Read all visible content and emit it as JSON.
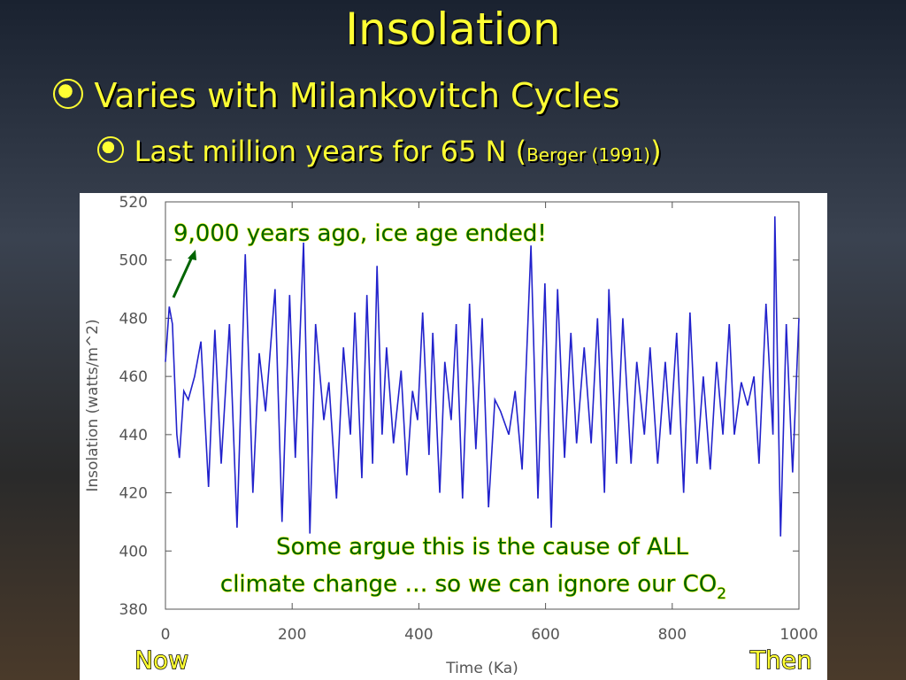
{
  "title": "Insolation",
  "bullets": [
    {
      "text": "Varies with Milankovitch Cycles"
    },
    {
      "text": "Last million years for 65 N (",
      "citation": "Berger (1991)",
      "close": ")"
    }
  ],
  "chart_data": {
    "type": "line",
    "ylabel": "Insolation (watts/m^2)",
    "xlabel": "Time (Ka)",
    "xlim": [
      0,
      1000
    ],
    "xticks": [
      0,
      200,
      400,
      600,
      800,
      1000
    ],
    "ylim": [
      380,
      520
    ],
    "yticks": [
      380,
      400,
      420,
      440,
      460,
      480,
      500,
      520
    ],
    "x": [
      0,
      6,
      11,
      18,
      22,
      29,
      36,
      46,
      56,
      68,
      78,
      88,
      101,
      113,
      126,
      138,
      148,
      158,
      173,
      184,
      196,
      205,
      218,
      228,
      237,
      250,
      258,
      270,
      281,
      292,
      299,
      310,
      318,
      327,
      334,
      342,
      349,
      360,
      372,
      381,
      390,
      398,
      406,
      416,
      422,
      433,
      441,
      451,
      459,
      469,
      480,
      490,
      500,
      510,
      520,
      529,
      542,
      552,
      563,
      577,
      588,
      599,
      609,
      619,
      630,
      640,
      649,
      661,
      672,
      682,
      693,
      700,
      712,
      722,
      735,
      744,
      756,
      765,
      777,
      789,
      797,
      807,
      818,
      828,
      839,
      849,
      860,
      870,
      880,
      890,
      898,
      909,
      919,
      929,
      937,
      948,
      959,
      962,
      971,
      980,
      990,
      1000
    ],
    "series": [
      {
        "name": "Insolation",
        "color": "#2222cc",
        "values": [
          465,
          484,
          478,
          440,
          432,
          455,
          452,
          460,
          472,
          422,
          476,
          430,
          478,
          408,
          502,
          420,
          468,
          448,
          490,
          410,
          488,
          432,
          506,
          406,
          478,
          445,
          458,
          418,
          470,
          440,
          482,
          425,
          488,
          430,
          498,
          440,
          470,
          437,
          462,
          426,
          455,
          445,
          482,
          433,
          475,
          420,
          465,
          445,
          478,
          418,
          485,
          435,
          480,
          415,
          452,
          448,
          440,
          455,
          428,
          505,
          418,
          492,
          408,
          490,
          432,
          475,
          437,
          470,
          437,
          480,
          420,
          490,
          430,
          480,
          430,
          465,
          440,
          470,
          430,
          465,
          440,
          475,
          420,
          482,
          430,
          460,
          428,
          465,
          440,
          478,
          440,
          458,
          450,
          460,
          430,
          485,
          440,
          515,
          405,
          478,
          427,
          480
        ]
      }
    ],
    "annotations": [
      "9,000 years ago, ice age ended!",
      "Some argue this is the cause of ALL",
      "climate change … so we can ignore our CO",
      "2"
    ],
    "x_end_labels": [
      "Now",
      "Then"
    ]
  }
}
